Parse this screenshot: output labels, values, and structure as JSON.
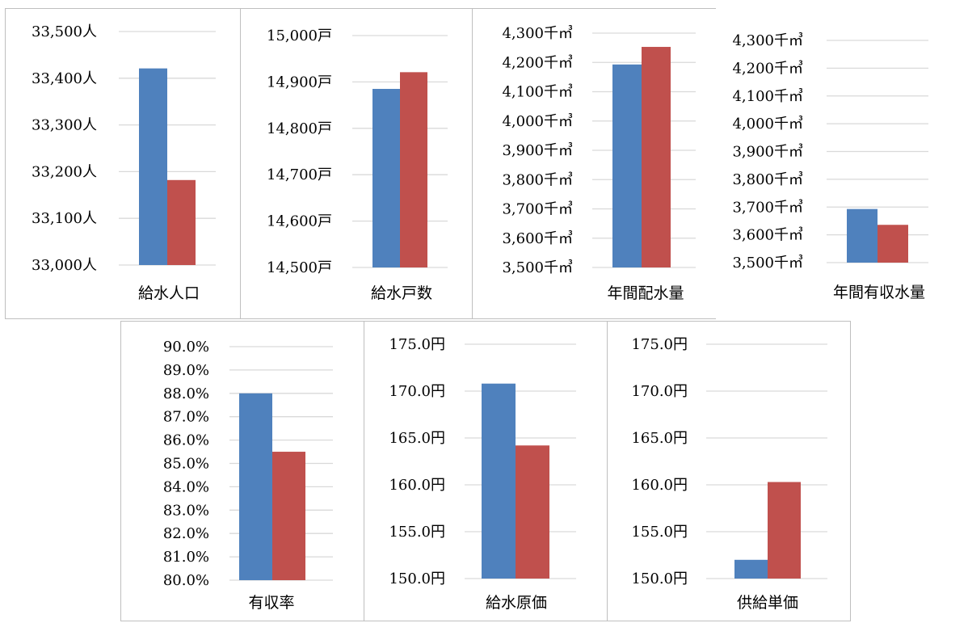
{
  "colors": {
    "series_a": "#4f81bd",
    "series_b": "#c0504d",
    "grid": "#d9d9d9",
    "border": "#bfbfbf"
  },
  "chart_data": [
    {
      "type": "bar",
      "caption": "給水人口",
      "categories": [
        "給水人口"
      ],
      "series": [
        {
          "values": [
            33421
          ]
        },
        {
          "values": [
            33182
          ]
        }
      ],
      "ylim": [
        33000,
        33500
      ],
      "ticks": [
        "33,000人",
        "33,100人",
        "33,200人",
        "33,300人",
        "33,400人",
        "33,500人"
      ],
      "grid": true
    },
    {
      "type": "bar",
      "caption": "給水戸数",
      "categories": [
        "給水戸数"
      ],
      "series": [
        {
          "values": [
            14885
          ]
        },
        {
          "values": [
            14921
          ]
        }
      ],
      "ylim": [
        14500,
        15000
      ],
      "ticks": [
        "14,500戸",
        "14,600戸",
        "14,700戸",
        "14,800戸",
        "14,900戸",
        "15,000戸"
      ],
      "grid": true
    },
    {
      "type": "bar",
      "caption": "年間配水量",
      "categories": [
        "年間配水量"
      ],
      "series": [
        {
          "values": [
            4193
          ]
        },
        {
          "values": [
            4253
          ]
        }
      ],
      "ylim": [
        3500,
        4300
      ],
      "ticks": [
        "3,500千㎥",
        "3,600千㎥",
        "3,700千㎥",
        "3,800千㎥",
        "3,900千㎥",
        "4,000千㎥",
        "4,100千㎥",
        "4,200千㎥",
        "4,300千㎥"
      ],
      "grid": true
    },
    {
      "type": "bar",
      "caption": "年間有収水量",
      "categories": [
        "年間有収水量"
      ],
      "series": [
        {
          "values": [
            3693
          ]
        },
        {
          "values": [
            3636
          ]
        }
      ],
      "ylim": [
        3500,
        4300
      ],
      "ticks": [
        "3,500千㎥",
        "3,600千㎥",
        "3,700千㎥",
        "3,800千㎥",
        "3,900千㎥",
        "4,000千㎥",
        "4,100千㎥",
        "4,200千㎥",
        "4,300千㎥"
      ],
      "grid": true
    },
    {
      "type": "bar",
      "caption": "有収率",
      "categories": [
        "有収率"
      ],
      "series": [
        {
          "values": [
            88.0
          ]
        },
        {
          "values": [
            85.5
          ]
        }
      ],
      "ylim": [
        80,
        90
      ],
      "ticks": [
        "80.0%",
        "81.0%",
        "82.0%",
        "83.0%",
        "84.0%",
        "85.0%",
        "86.0%",
        "87.0%",
        "88.0%",
        "89.0%",
        "90.0%"
      ],
      "grid": true
    },
    {
      "type": "bar",
      "caption": "給水原価",
      "categories": [
        "給水原価"
      ],
      "series": [
        {
          "values": [
            170.8
          ]
        },
        {
          "values": [
            164.2
          ]
        }
      ],
      "ylim": [
        150,
        175
      ],
      "ticks": [
        "150.0円",
        "155.0円",
        "160.0円",
        "165.0円",
        "170.0円",
        "175.0円"
      ],
      "grid": true
    },
    {
      "type": "bar",
      "caption": "供給単価",
      "categories": [
        "供給単価"
      ],
      "series": [
        {
          "values": [
            152.0
          ]
        },
        {
          "values": [
            160.3
          ]
        }
      ],
      "ylim": [
        150,
        175
      ],
      "ticks": [
        "150.0円",
        "155.0円",
        "160.0円",
        "165.0円",
        "170.0円",
        "175.0円"
      ],
      "grid": true
    }
  ]
}
